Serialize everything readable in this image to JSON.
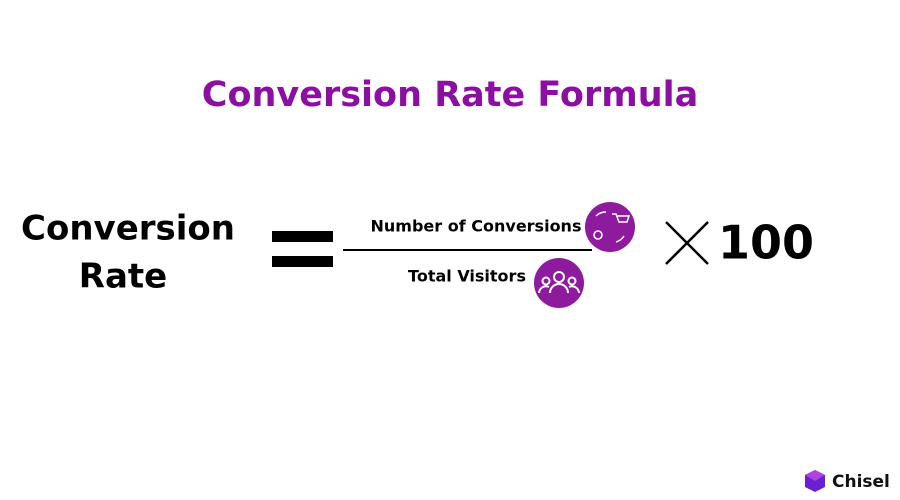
{
  "title": "Conversion Rate Formula",
  "formula": {
    "left": [
      "Conversion",
      "Rate"
    ],
    "numerator": "Number of Conversions",
    "denominator": "Total Visitors",
    "multiplier": "100"
  },
  "brand": "Chisel"
}
